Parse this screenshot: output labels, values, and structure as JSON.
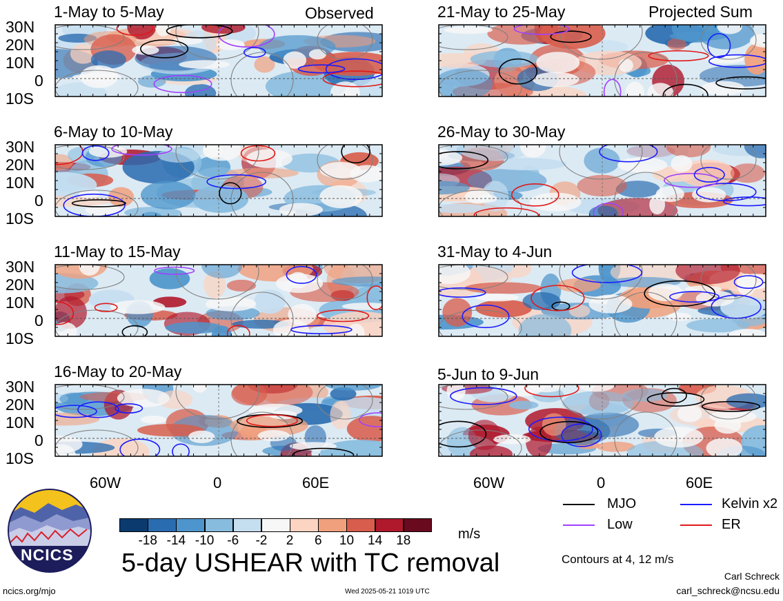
{
  "left_column": {
    "header_label": "Observed",
    "panels": [
      {
        "title": "1-May to 5-May"
      },
      {
        "title": "6-May to 10-May"
      },
      {
        "title": "11-May to 15-May"
      },
      {
        "title": "16-May to 20-May"
      }
    ]
  },
  "right_column": {
    "header_label": "Projected Sum",
    "panels": [
      {
        "title": "21-May to 25-May"
      },
      {
        "title": "26-May to 30-May"
      },
      {
        "title": "31-May to 4-Jun"
      },
      {
        "title": "5-Jun to 9-Jun"
      }
    ]
  },
  "lat_labels": [
    "30N",
    "20N",
    "10N",
    "0",
    "10S"
  ],
  "lon_labels": [
    "60W",
    "0",
    "60E"
  ],
  "colorbar": {
    "ticks": [
      "-18",
      "-14",
      "-10",
      "-6",
      "-2",
      "2",
      "6",
      "10",
      "14",
      "18"
    ],
    "colors": [
      "#0b3a6e",
      "#2a6cb0",
      "#4d95cc",
      "#88bcdf",
      "#c5def0",
      "#f7f7f7",
      "#fbd4c2",
      "#f1a07e",
      "#d95d4c",
      "#b0182b",
      "#6a0a1f"
    ],
    "unit": "m/s"
  },
  "legend": {
    "items": [
      {
        "label": "MJO",
        "color": "#000000"
      },
      {
        "label": "Kelvin x2",
        "color": "#1a1aff"
      },
      {
        "label": "Low",
        "color": "#a040ff"
      },
      {
        "label": "ER",
        "color": "#e01818"
      }
    ],
    "note": "Contours at 4, 12 m/s"
  },
  "main_title": "5-day USHEAR with TC removal",
  "logo_text": "NCICS",
  "footer": {
    "website": "ncics.org/mjo",
    "timestamp": "Wed 2025-05-21 1019 UTC",
    "author": "Carl Schreck",
    "email": "carl_schreck@ncsu.edu"
  }
}
